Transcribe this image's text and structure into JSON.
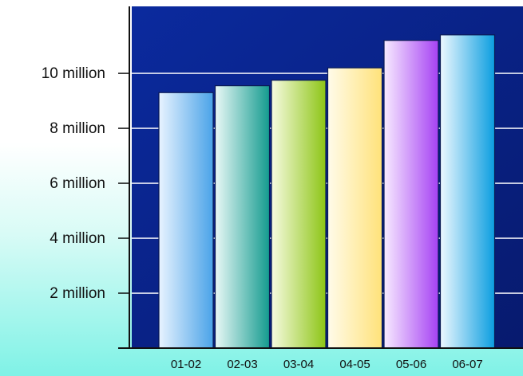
{
  "chart_data": {
    "type": "bar",
    "title": "",
    "xlabel": "",
    "ylabel": "",
    "categories": [
      "01-02",
      "02-03",
      "03-04",
      "04-05",
      "05-06",
      "06-07"
    ],
    "values": [
      9300000,
      9550000,
      9750000,
      10200000,
      11200000,
      11400000
    ],
    "ylim": [
      0,
      11800000
    ],
    "yticks": [
      2000000,
      4000000,
      6000000,
      8000000,
      10000000
    ],
    "ytick_labels": [
      "2 million",
      "4 million",
      "6 million",
      "8 million",
      "10 million"
    ],
    "grid": true,
    "legend": "none",
    "colors": {
      "plot_bg_top": "#0b2a9e",
      "plot_bg_bottom": "#071a6e",
      "outer_bg_top": "#ffffff",
      "outer_bg_bottom": "#7ff2e6",
      "gridline": "#ffffff",
      "axis": "#111111",
      "bars": [
        [
          "#e8f3ff",
          "#4aa3e8"
        ],
        [
          "#e9f8f6",
          "#149b8f"
        ],
        [
          "#f7fbe0",
          "#8dc516"
        ],
        [
          "#fffbea",
          "#ffe27a"
        ],
        [
          "#f7eaff",
          "#a642f3"
        ],
        [
          "#eef8ff",
          "#0b9ee0"
        ]
      ]
    }
  }
}
